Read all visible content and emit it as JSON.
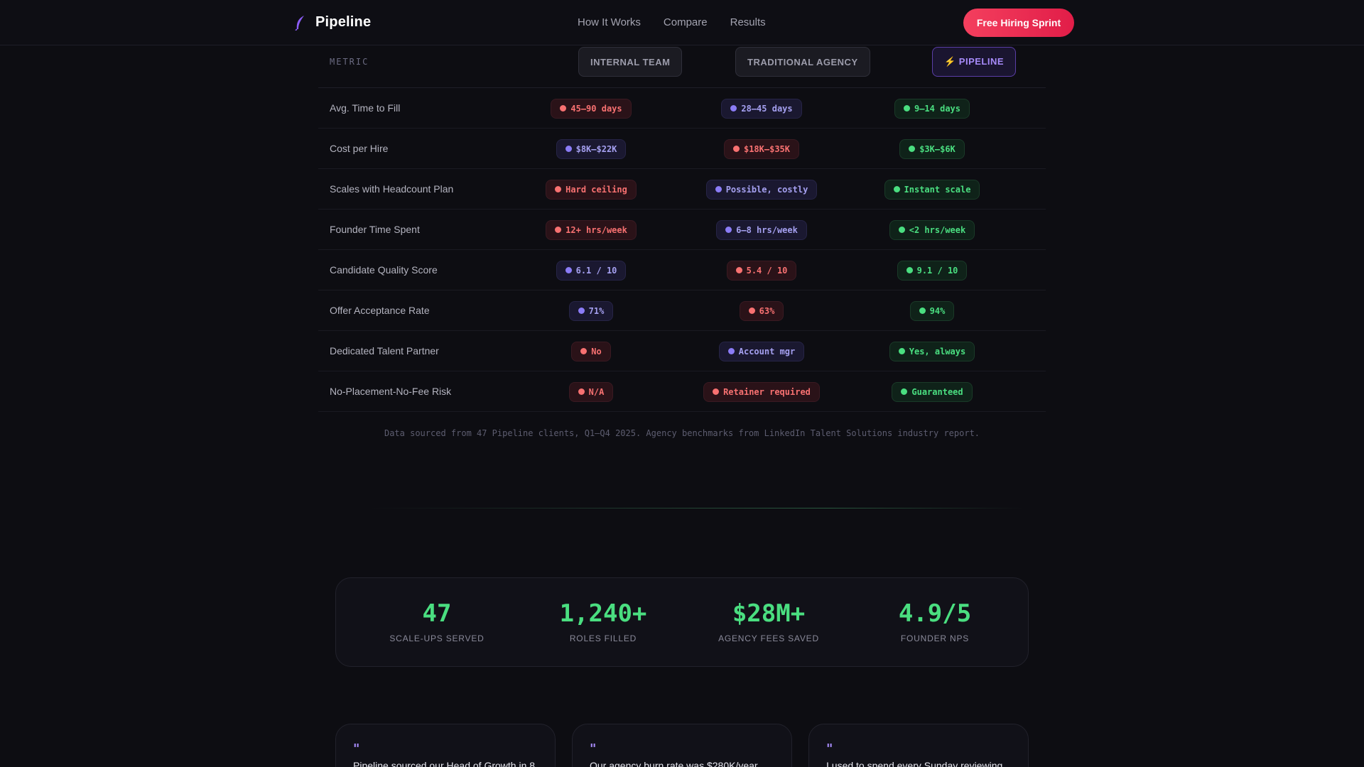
{
  "header": {
    "brand": "Pipeline",
    "nav": [
      "How It Works",
      "Compare",
      "Results"
    ],
    "cta": "Free Hiring Sprint"
  },
  "table": {
    "metric_label": "METRIC",
    "columns": [
      "INTERNAL TEAM",
      "TRADITIONAL AGENCY",
      "⚡ PIPELINE"
    ],
    "rows": [
      {
        "label": "Avg. Time to Fill",
        "cells": [
          {
            "text": "45–90 days",
            "tone": "red"
          },
          {
            "text": "28–45 days",
            "tone": "purple"
          },
          {
            "text": "9–14 days",
            "tone": "green"
          }
        ]
      },
      {
        "label": "Cost per Hire",
        "cells": [
          {
            "text": "$8K–$22K",
            "tone": "purple"
          },
          {
            "text": "$18K–$35K",
            "tone": "red"
          },
          {
            "text": "$3K–$6K",
            "tone": "green"
          }
        ]
      },
      {
        "label": "Scales with Headcount Plan",
        "cells": [
          {
            "text": "Hard ceiling",
            "tone": "red"
          },
          {
            "text": "Possible, costly",
            "tone": "purple"
          },
          {
            "text": "Instant scale",
            "tone": "green"
          }
        ]
      },
      {
        "label": "Founder Time Spent",
        "cells": [
          {
            "text": "12+ hrs/week",
            "tone": "red"
          },
          {
            "text": "6–8 hrs/week",
            "tone": "purple"
          },
          {
            "text": "<2 hrs/week",
            "tone": "green"
          }
        ]
      },
      {
        "label": "Candidate Quality Score",
        "cells": [
          {
            "text": "6.1 / 10",
            "tone": "purple"
          },
          {
            "text": "5.4 / 10",
            "tone": "red"
          },
          {
            "text": "9.1 / 10",
            "tone": "green"
          }
        ]
      },
      {
        "label": "Offer Acceptance Rate",
        "cells": [
          {
            "text": "71%",
            "tone": "purple"
          },
          {
            "text": "63%",
            "tone": "red"
          },
          {
            "text": "94%",
            "tone": "green"
          }
        ]
      },
      {
        "label": "Dedicated Talent Partner",
        "cells": [
          {
            "text": "No",
            "tone": "red"
          },
          {
            "text": "Account mgr",
            "tone": "purple"
          },
          {
            "text": "Yes, always",
            "tone": "green"
          }
        ]
      },
      {
        "label": "No-Placement-No-Fee Risk",
        "cells": [
          {
            "text": "N/A",
            "tone": "red"
          },
          {
            "text": "Retainer required",
            "tone": "red"
          },
          {
            "text": "Guaranteed",
            "tone": "green"
          }
        ]
      }
    ],
    "source": "Data sourced from 47 Pipeline clients, Q1–Q4 2025. Agency benchmarks from LinkedIn Talent Solutions industry report."
  },
  "stats": [
    {
      "value": "47",
      "label": "SCALE-UPS SERVED"
    },
    {
      "value": "1,240+",
      "label": "ROLES FILLED"
    },
    {
      "value": "$28M+",
      "label": "AGENCY FEES SAVED"
    },
    {
      "value": "4.9/5",
      "label": "FOUNDER NPS"
    }
  ],
  "testimonials": [
    {
      "quote_mark": "\"",
      "text": "Pipeline sourced our Head of Growth in 8"
    },
    {
      "quote_mark": "\"",
      "text": "Our agency burn rate was $280K/year"
    },
    {
      "quote_mark": "\"",
      "text": "I used to spend every Sunday reviewing"
    }
  ],
  "colors": {
    "accent": "#4ade80",
    "cta": "#f43f5e",
    "pipeline": "#a78bfa"
  },
  "icons": {
    "brand": "feather-icon",
    "quote": "quote-icon",
    "badge": "status-dot-icon"
  }
}
